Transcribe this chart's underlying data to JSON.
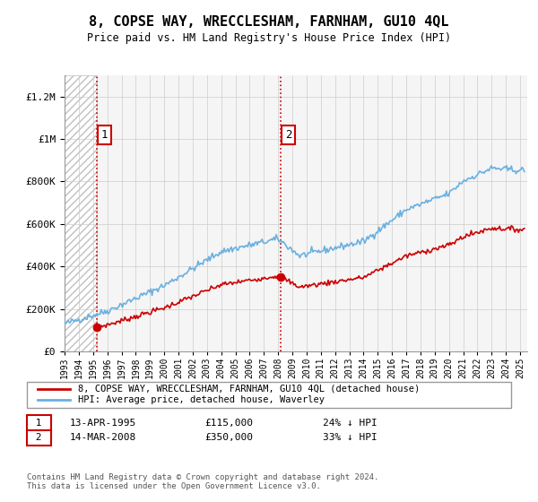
{
  "title": "8, COPSE WAY, WRECCLESHAM, FARNHAM, GU10 4QL",
  "subtitle": "Price paid vs. HM Land Registry's House Price Index (HPI)",
  "ylim": [
    0,
    1300000
  ],
  "xlim_start": 1993,
  "xlim_end": 2025.5,
  "sale1_year": 1995.28,
  "sale1_price": 115000,
  "sale1_label": "1",
  "sale2_year": 2008.19,
  "sale2_price": 350000,
  "sale2_label": "2",
  "hpi_color": "#6ab0e0",
  "price_color": "#cc0000",
  "legend_line1": "8, COPSE WAY, WRECCLESHAM, FARNHAM, GU10 4QL (detached house)",
  "legend_line2": "HPI: Average price, detached house, Waverley",
  "annotation1_date": "13-APR-1995",
  "annotation1_price": "£115,000",
  "annotation1_note": "24% ↓ HPI",
  "annotation2_date": "14-MAR-2008",
  "annotation2_price": "£350,000",
  "annotation2_note": "33% ↓ HPI",
  "footnote": "Contains HM Land Registry data © Crown copyright and database right 2024.\nThis data is licensed under the Open Government Licence v3.0."
}
